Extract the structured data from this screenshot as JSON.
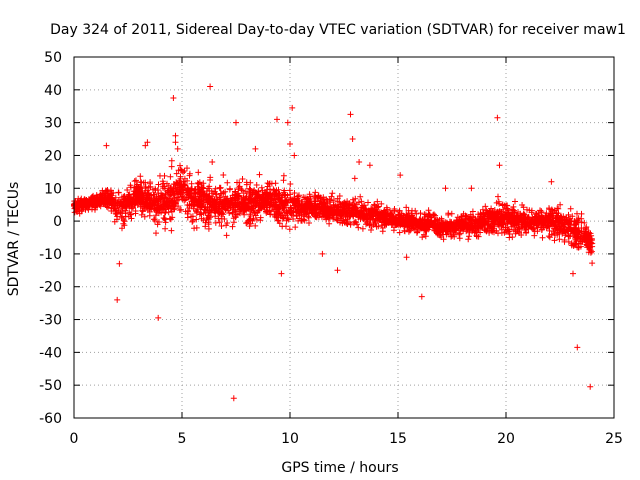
{
  "chart_data": {
    "type": "scatter",
    "title": "Day 324 of 2011, Sidereal Day-to-day VTEC variation (SDTVAR) for receiver maw1",
    "xlabel": "GPS time / hours",
    "ylabel": "SDTVAR / TECUs",
    "xlim": [
      0,
      25
    ],
    "ylim": [
      -60,
      50
    ],
    "xticks": [
      0,
      5,
      10,
      15,
      20,
      25
    ],
    "xtick_labels": [
      "0",
      "5",
      "10",
      "15",
      "20",
      "25"
    ],
    "yticks": [
      -60,
      -50,
      -40,
      -30,
      -20,
      -10,
      0,
      10,
      20,
      30,
      40,
      50
    ],
    "ytick_labels": [
      "-60",
      "-50",
      "-40",
      "-30",
      "-20",
      "-10",
      "0",
      "10",
      "20",
      "30",
      "40",
      "50"
    ],
    "grid": true,
    "marker": "+",
    "color": "#ff0000",
    "band_center": {
      "x": [
        0,
        0.5,
        1,
        1.5,
        2,
        2.5,
        3,
        3.5,
        4,
        4.5,
        5,
        5.5,
        6,
        6.5,
        7,
        7.5,
        8,
        8.5,
        9,
        9.5,
        10,
        10.5,
        11,
        11.5,
        12,
        12.5,
        13,
        13.5,
        14,
        14.5,
        15,
        15.5,
        16,
        16.5,
        17,
        17.5,
        18,
        18.5,
        19,
        19.5,
        20,
        20.5,
        21,
        21.5,
        22,
        22.5,
        23,
        23.5,
        24
      ],
      "y": [
        5,
        5,
        6,
        7,
        4,
        5,
        8,
        6,
        5,
        7,
        10,
        7,
        6,
        5,
        4,
        6,
        5,
        6,
        7,
        6,
        5,
        4,
        4,
        4,
        3,
        3,
        3,
        2,
        2,
        1,
        0,
        0,
        -1,
        -1,
        -2,
        -2,
        -1,
        -1,
        0,
        1,
        1,
        0,
        0,
        0,
        0,
        -1,
        -2,
        -4,
        -7
      ],
      "spread": [
        3,
        3,
        3,
        4,
        8,
        7,
        7,
        8,
        9,
        10,
        10,
        9,
        9,
        8,
        9,
        9,
        8,
        7,
        7,
        9,
        9,
        6,
        5,
        5,
        5,
        5,
        6,
        6,
        5,
        4,
        4,
        4,
        4,
        4,
        4,
        4,
        5,
        5,
        5,
        6,
        7,
        6,
        5,
        5,
        6,
        7,
        8,
        7,
        6
      ]
    },
    "outliers": {
      "x": [
        1.5,
        2.0,
        2.1,
        3.3,
        3.4,
        3.9,
        4.6,
        4.7,
        4.7,
        4.8,
        6.3,
        6.4,
        7.4,
        7.5,
        7.6,
        8.4,
        9.4,
        9.6,
        9.9,
        10.0,
        10.1,
        10.2,
        11.5,
        12.2,
        12.8,
        12.9,
        13.0,
        13.2,
        13.7,
        15.1,
        15.4,
        16.1,
        17.2,
        18.4,
        19.6,
        19.7,
        22.1,
        23.1,
        23.3,
        23.9
      ],
      "y": [
        23,
        -24,
        -13,
        23,
        24,
        -29.5,
        37.5,
        26,
        24,
        22,
        41,
        18,
        -54,
        30,
        5,
        22,
        31,
        -16,
        30,
        23.5,
        34.5,
        20,
        -10,
        -15,
        32.5,
        25,
        13,
        18,
        17,
        14,
        -11,
        -23,
        10,
        10,
        31.5,
        17,
        12,
        -16,
        -38.5,
        -50.5
      ]
    }
  }
}
